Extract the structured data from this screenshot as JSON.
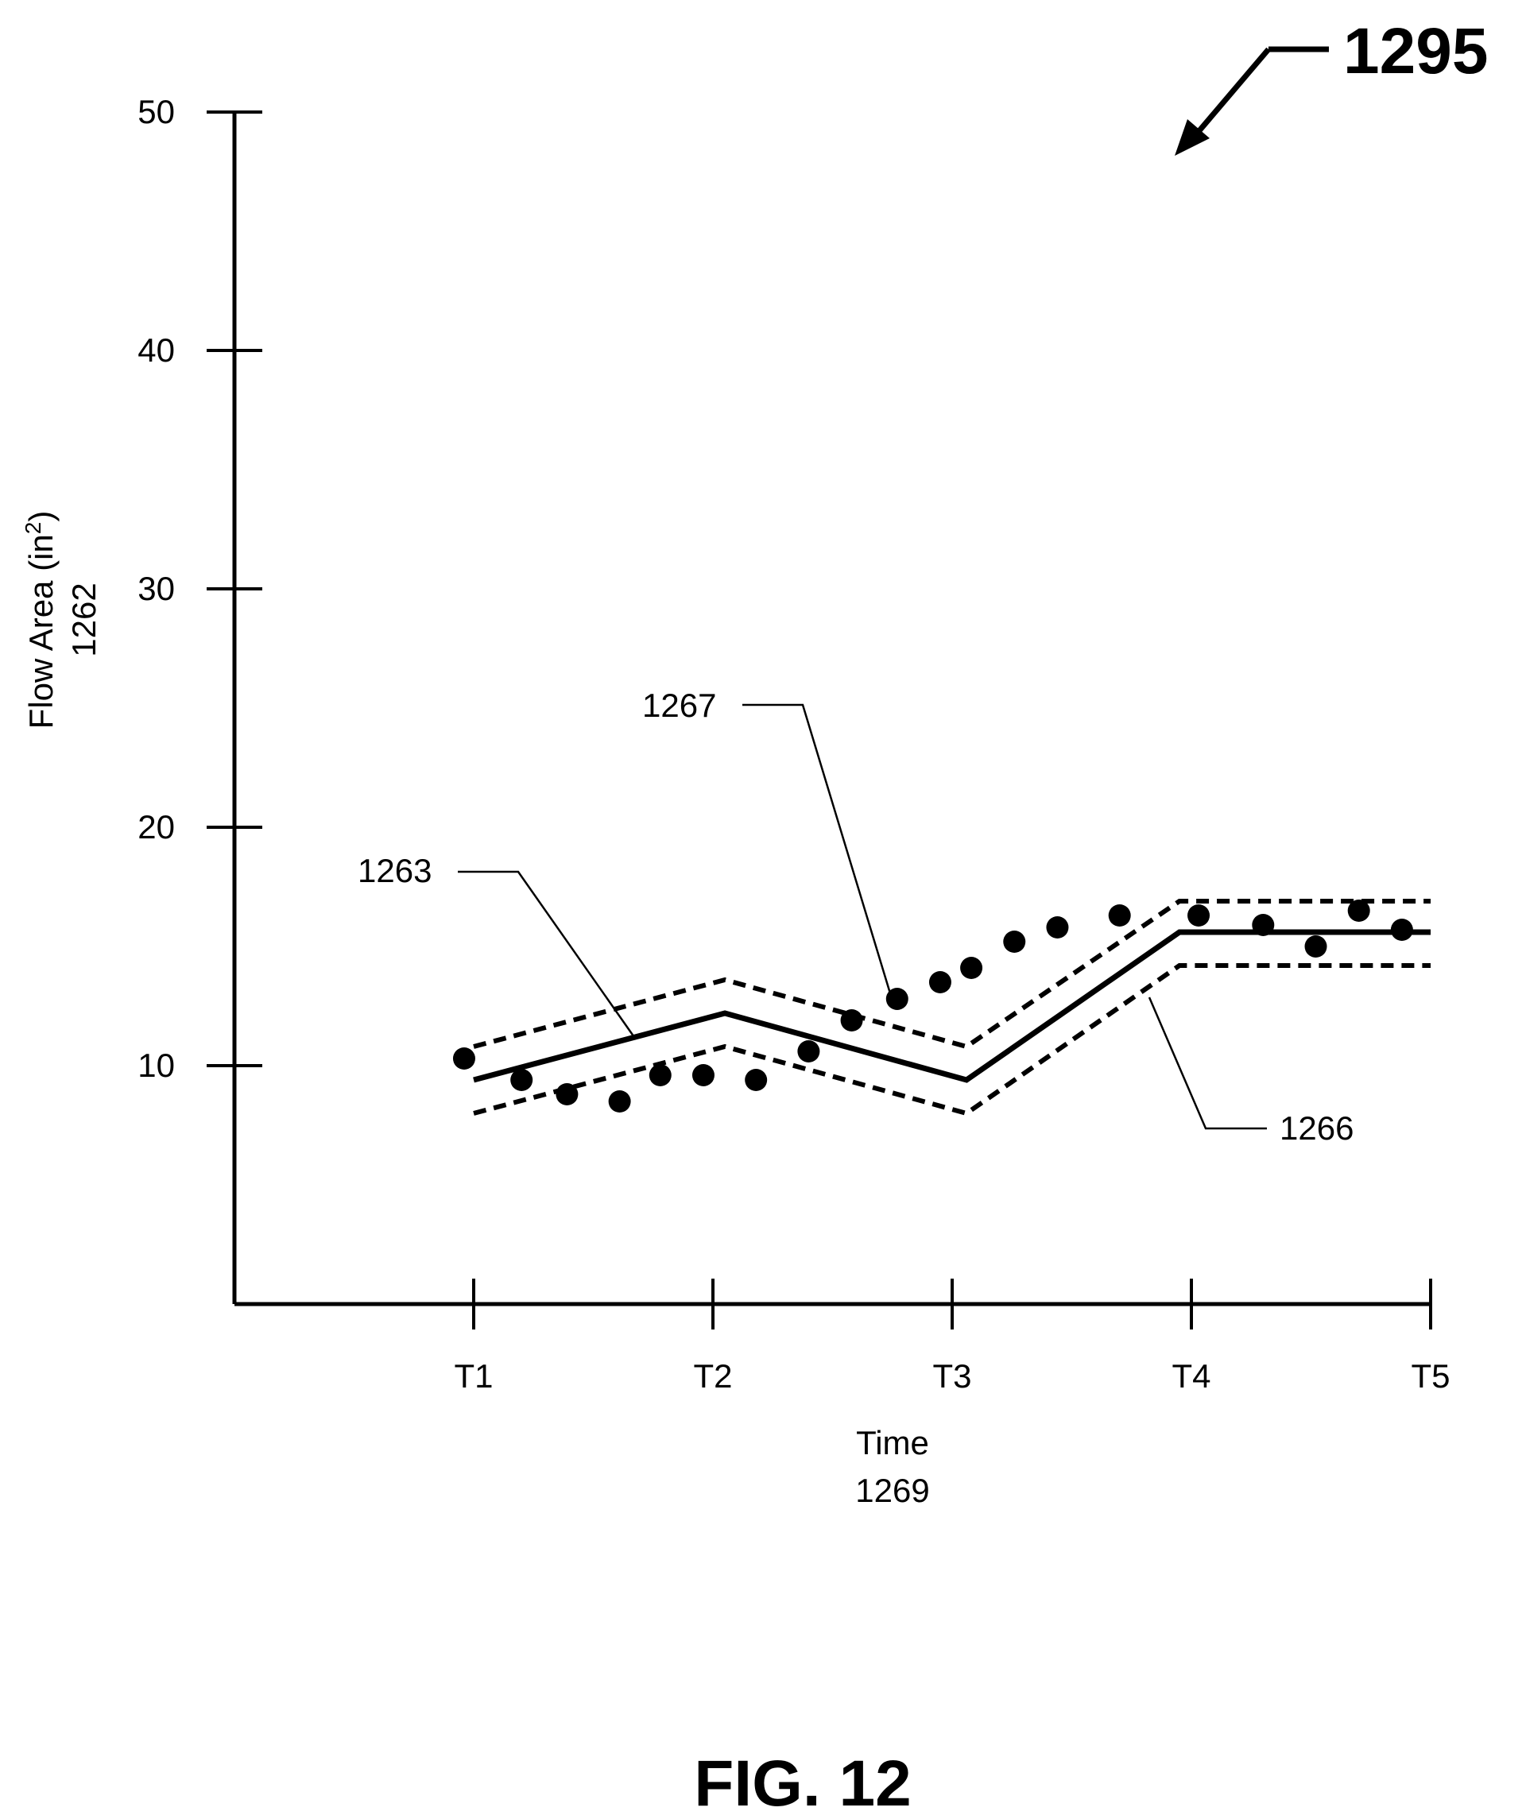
{
  "figure": {
    "id_label": "1295",
    "caption": "FIG. 12"
  },
  "chart_data": {
    "type": "line",
    "title": "",
    "xlabel": "Time",
    "xlabel_ref": "1269",
    "ylabel": "Flow Area (in",
    "ylabel_sup": "2",
    "ylabel_close": ")",
    "ylabel_ref": "1262",
    "yticks": [
      10,
      20,
      30,
      40,
      50
    ],
    "ylim": [
      0,
      50
    ],
    "categories": [
      "T1",
      "T2",
      "T3",
      "T4",
      "T5"
    ],
    "x_range": [
      0,
      5
    ],
    "series": [
      {
        "name": "1263",
        "style": "solid",
        "points": [
          [
            1.0,
            9.4
          ],
          [
            2.05,
            12.2
          ],
          [
            3.06,
            9.4
          ],
          [
            3.95,
            15.6
          ],
          [
            5.0,
            15.6
          ]
        ]
      },
      {
        "name": "1266",
        "style": "dashed",
        "points": [
          [
            1.0,
            10.8
          ],
          [
            2.05,
            13.6
          ],
          [
            3.06,
            10.8
          ],
          [
            3.95,
            16.9
          ],
          [
            5.0,
            16.9
          ]
        ]
      },
      {
        "style": "dashed",
        "points": [
          [
            1.0,
            8.0
          ],
          [
            2.05,
            10.8
          ],
          [
            3.06,
            8.0
          ],
          [
            3.95,
            14.2
          ],
          [
            5.0,
            14.2
          ]
        ]
      },
      {
        "name": "1267",
        "style": "dots",
        "points": [
          [
            0.96,
            10.3
          ],
          [
            1.2,
            9.4
          ],
          [
            1.39,
            8.8
          ],
          [
            1.61,
            8.5
          ],
          [
            1.78,
            9.6
          ],
          [
            1.96,
            9.6
          ],
          [
            2.18,
            9.4
          ],
          [
            2.4,
            10.6
          ],
          [
            2.58,
            11.9
          ],
          [
            2.77,
            12.8
          ],
          [
            2.95,
            13.5
          ],
          [
            3.08,
            14.1
          ],
          [
            3.26,
            15.2
          ],
          [
            3.44,
            15.8
          ],
          [
            3.7,
            16.3
          ],
          [
            4.03,
            16.3
          ],
          [
            4.3,
            15.9
          ],
          [
            4.52,
            15.0
          ],
          [
            4.7,
            16.5
          ],
          [
            4.88,
            15.7
          ]
        ]
      }
    ],
    "grid": false
  }
}
